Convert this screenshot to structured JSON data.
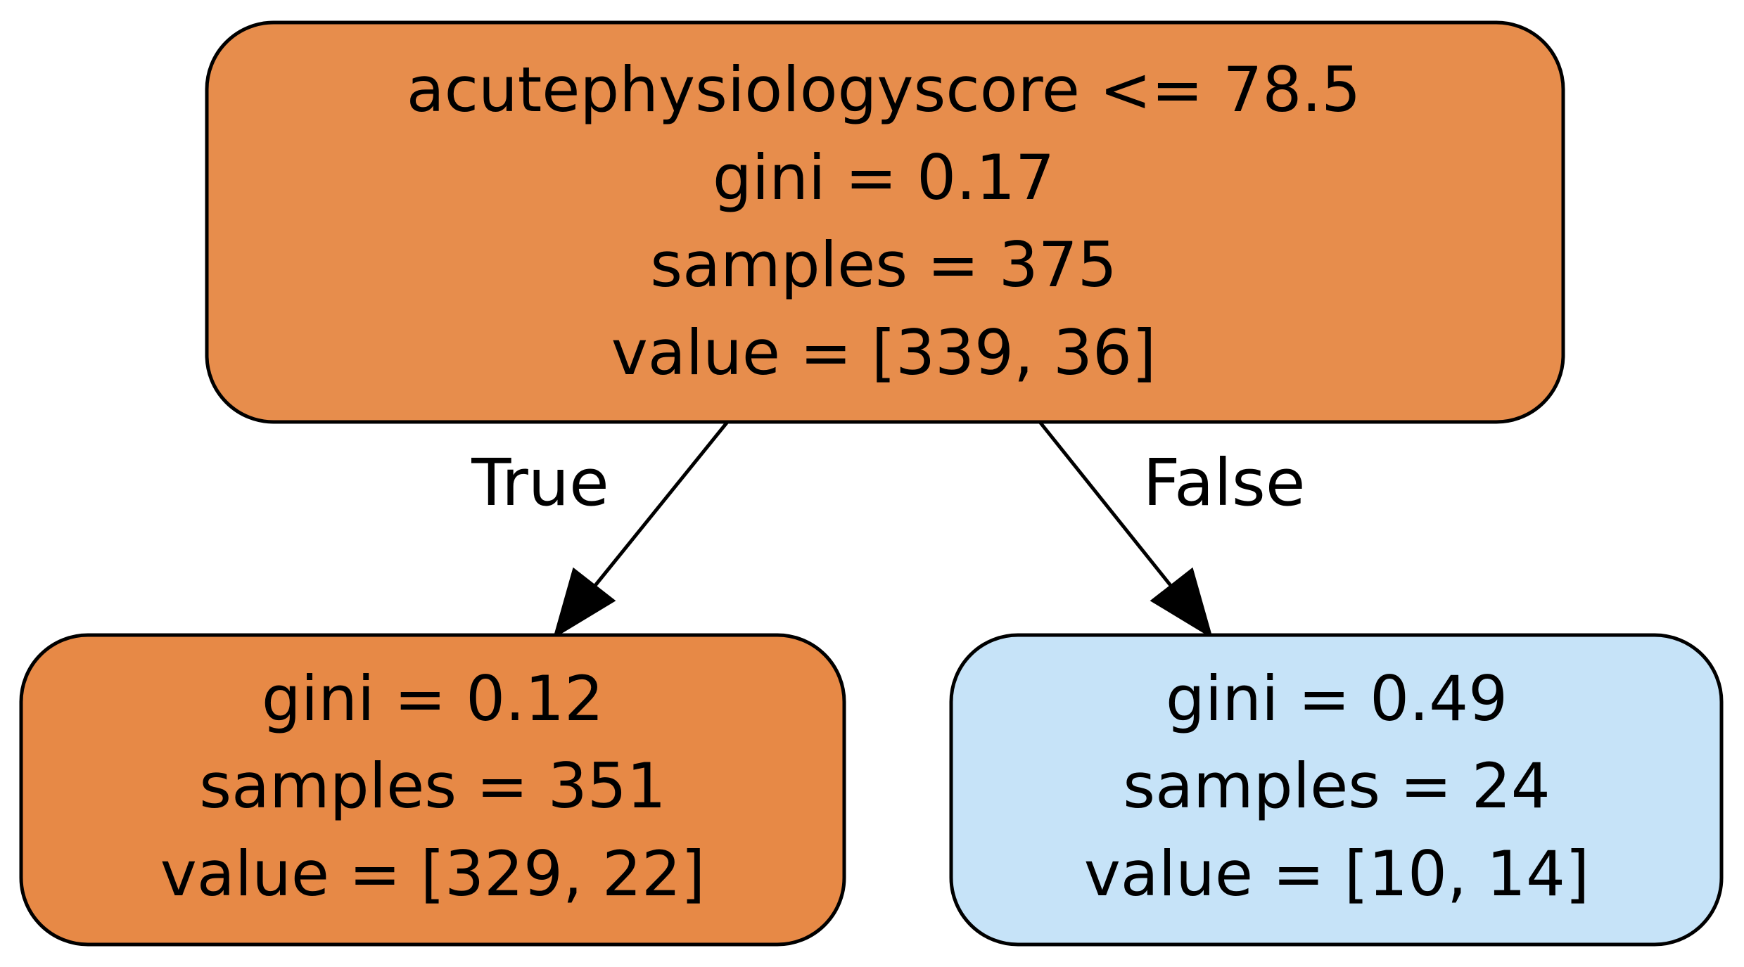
{
  "tree": {
    "root": {
      "lines": [
        "acutephysiologyscore <= 78.5",
        "gini = 0.17",
        "samples = 375",
        "value = [339, 36]"
      ],
      "fill": "#e78d4c"
    },
    "left": {
      "lines": [
        "gini = 0.12",
        "samples = 351",
        "value = [329, 22]"
      ],
      "fill": "#e78946"
    },
    "right": {
      "lines": [
        "gini = 0.49",
        "samples = 24",
        "value = [10, 14]"
      ],
      "fill": "#c6e3f8"
    },
    "edges": {
      "true_label": "True",
      "false_label": "False"
    },
    "stroke_color": "#000000"
  }
}
